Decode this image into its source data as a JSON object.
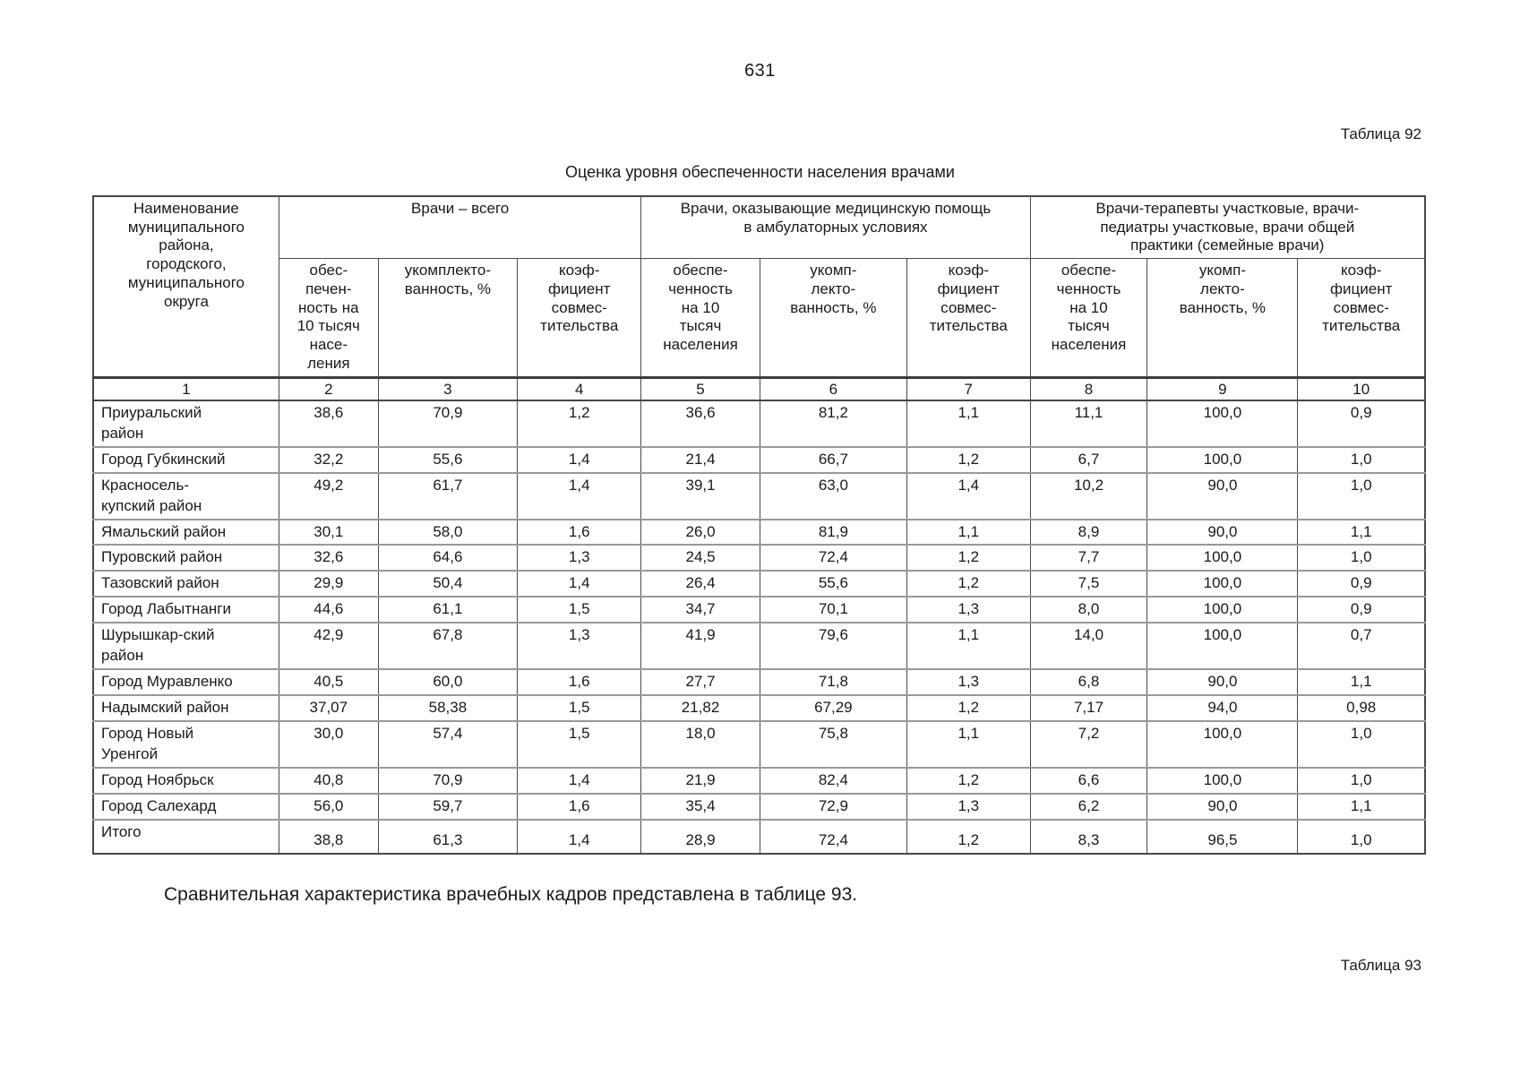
{
  "document": {
    "page_number": "631",
    "table_label": "Таблица 92",
    "table_title": "Оценка уровня обеспеченности населения врачами",
    "closing_paragraph": "Сравнительная характеристика врачебных кадров представлена в таблице 93.",
    "next_table_label": "Таблица 93"
  },
  "table": {
    "name_header": "Наименование\nмуниципального\nрайона,\nгородского,\nмуниципального\nокруга",
    "groups": [
      {
        "label": "Врачи – всего",
        "sub": [
          "обес-\nпечен-\nность на\n10 тысяч\nнасе-\nления",
          "укомплекто-\nванность, %",
          "коэф-\nфициент\nсовмес-\nтительства"
        ]
      },
      {
        "label": "Врачи, оказывающие медицинскую помощь\nв амбулаторных условиях",
        "sub": [
          "обеспе-\nченность\nна 10\nтысяч\nнаселения",
          "укомп-\nлекто-\nванность, %",
          "коэф-\nфициент\nсовмес-\nтительства"
        ]
      },
      {
        "label": "Врачи-терапевты участковые, врачи-\nпедиатры участковые, врачи общей\nпрактики (семейные врачи)",
        "sub": [
          "обеспе-\nченность\nна 10\nтысяч\nнаселения",
          "укомп-\nлекто-\nванность, %",
          "коэф-\nфициент\nсовмес-\nтительства"
        ]
      }
    ],
    "column_numbers": [
      "1",
      "2",
      "3",
      "4",
      "5",
      "6",
      "7",
      "8",
      "9",
      "10"
    ],
    "rows": [
      {
        "name": "Приуральский\nрайон",
        "values": [
          "38,6",
          "70,9",
          "1,2",
          "36,6",
          "81,2",
          "1,1",
          "11,1",
          "100,0",
          "0,9"
        ]
      },
      {
        "name": "Город Губкинский",
        "values": [
          "32,2",
          "55,6",
          "1,4",
          "21,4",
          "66,7",
          "1,2",
          "6,7",
          "100,0",
          "1,0"
        ]
      },
      {
        "name": "Красносель-\nкупский район",
        "values": [
          "49,2",
          "61,7",
          "1,4",
          "39,1",
          "63,0",
          "1,4",
          "10,2",
          "90,0",
          "1,0"
        ]
      },
      {
        "name": "Ямальский район",
        "values": [
          "30,1",
          "58,0",
          "1,6",
          "26,0",
          "81,9",
          "1,1",
          "8,9",
          "90,0",
          "1,1"
        ]
      },
      {
        "name": "Пуровский район",
        "values": [
          "32,6",
          "64,6",
          "1,3",
          "24,5",
          "72,4",
          "1,2",
          "7,7",
          "100,0",
          "1,0"
        ]
      },
      {
        "name": "Тазовский район",
        "values": [
          "29,9",
          "50,4",
          "1,4",
          "26,4",
          "55,6",
          "1,2",
          "7,5",
          "100,0",
          "0,9"
        ]
      },
      {
        "name": "Город Лабытнанги",
        "values": [
          "44,6",
          "61,1",
          "1,5",
          "34,7",
          "70,1",
          "1,3",
          "8,0",
          "100,0",
          "0,9"
        ]
      },
      {
        "name": "Шурышкар-ский\nрайон",
        "values": [
          "42,9",
          "67,8",
          "1,3",
          "41,9",
          "79,6",
          "1,1",
          "14,0",
          "100,0",
          "0,7"
        ]
      },
      {
        "name": "Город Муравленко",
        "values": [
          "40,5",
          "60,0",
          "1,6",
          "27,7",
          "71,8",
          "1,3",
          "6,8",
          "90,0",
          "1,1"
        ]
      },
      {
        "name": "Надымский район",
        "values": [
          "37,07",
          "58,38",
          "1,5",
          "21,82",
          "67,29",
          "1,2",
          "7,17",
          "94,0",
          "0,98"
        ]
      },
      {
        "name": "Город Новый\nУренгой",
        "values": [
          "30,0",
          "57,4",
          "1,5",
          "18,0",
          "75,8",
          "1,1",
          "7,2",
          "100,0",
          "1,0"
        ]
      },
      {
        "name": "Город Ноябрьск",
        "values": [
          "40,8",
          "70,9",
          "1,4",
          "21,9",
          "82,4",
          "1,2",
          "6,6",
          "100,0",
          "1,0"
        ]
      },
      {
        "name": "Город Салехард",
        "values": [
          "56,0",
          "59,7",
          "1,6",
          "35,4",
          "72,9",
          "1,3",
          "6,2",
          "90,0",
          "1,1"
        ]
      },
      {
        "name": "Итого",
        "values": [
          "38,8",
          "61,3",
          "1,4",
          "28,9",
          "72,4",
          "1,2",
          "8,3",
          "96,5",
          "1,0"
        ]
      }
    ]
  }
}
